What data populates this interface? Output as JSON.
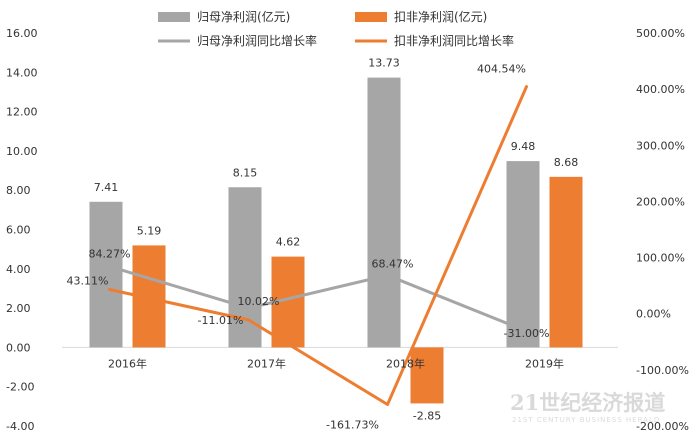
{
  "chart_data": {
    "type": "bar",
    "categories": [
      "2016年",
      "2017年",
      "2018年",
      "2019年"
    ],
    "bar_series": [
      {
        "name": "归母净利润(亿元)",
        "color": "#a6a6a6",
        "values": [
          7.41,
          8.15,
          13.73,
          9.48
        ],
        "labels": [
          "7.41",
          "8.15",
          "13.73",
          "9.48"
        ]
      },
      {
        "name": "扣非净利润(亿元)",
        "color": "#ed7d31",
        "values": [
          5.19,
          4.62,
          -2.85,
          8.68
        ],
        "labels": [
          "5.19",
          "4.62",
          "-2.85",
          "8.68"
        ]
      }
    ],
    "line_series": [
      {
        "name": "归母净利润同比增长率",
        "color": "#a6a6a6",
        "values": [
          84.27,
          10.02,
          68.47,
          -31.0
        ],
        "labels": [
          "84.27%",
          "10.02%",
          "68.47%",
          "-31.00%"
        ]
      },
      {
        "name": "扣非净利润同比增长率",
        "color": "#ed7d31",
        "values": [
          43.11,
          -11.01,
          -161.73,
          404.54
        ],
        "labels": [
          "43.11%",
          "-11.01%",
          "-161.73%",
          "404.54%"
        ]
      }
    ],
    "left_axis": {
      "ylim": [
        -4,
        16
      ],
      "ticks": [
        "-4.00",
        "-2.00",
        "0.00",
        "2.00",
        "4.00",
        "6.00",
        "8.00",
        "10.00",
        "12.00",
        "14.00",
        "16.00"
      ]
    },
    "right_axis": {
      "ylim": [
        -200,
        500
      ],
      "ticks": [
        "-200.00%",
        "-100.00%",
        "0.00%",
        "100.00%",
        "200.00%",
        "300.00%",
        "400.00%",
        "500.00%"
      ]
    },
    "legend_position": "top",
    "grid": false
  },
  "watermark": {
    "line1": "21世纪经济报道",
    "line2": "21ST CENTURY BUSINESS HERALD"
  }
}
